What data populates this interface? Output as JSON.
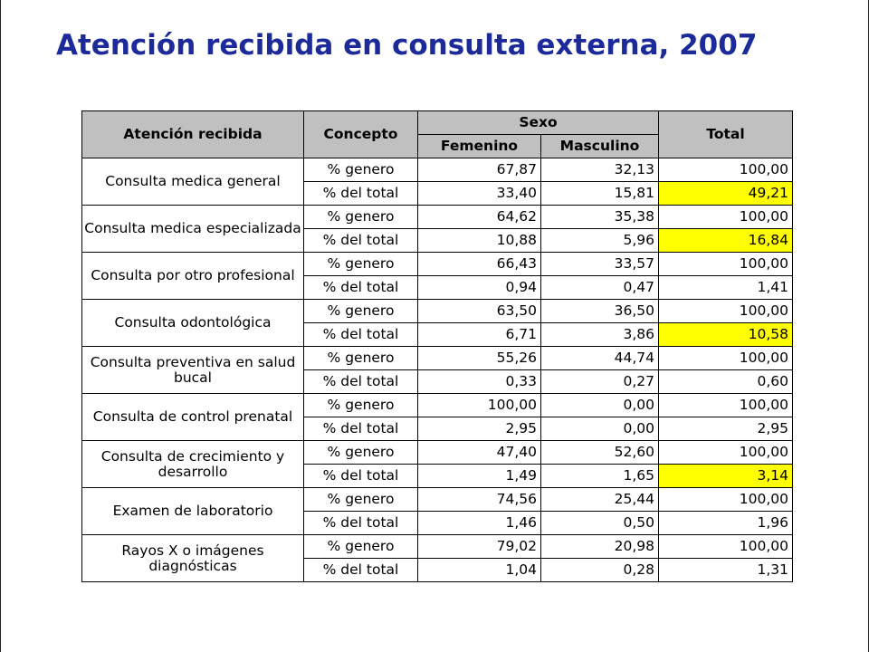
{
  "title": "Atención recibida en consulta externa, 2007",
  "highlight_color": "#ffff00",
  "header": {
    "col_atencion": "Atención recibida",
    "col_concepto": "Concepto",
    "col_sexo": "Sexo",
    "col_femenino": "Femenino",
    "col_masculino": "Masculino",
    "col_total": "Total"
  },
  "rows": [
    {
      "atencion": "Consulta medica general",
      "concepto": "% genero",
      "femenino": "67,87",
      "masculino": "32,13",
      "total": "100,00",
      "highlight": false
    },
    {
      "concepto": "% del total",
      "femenino": "33,40",
      "masculino": "15,81",
      "total": "49,21",
      "highlight": true
    },
    {
      "atencion": "Consulta medica especializada",
      "concepto": "% genero",
      "femenino": "64,62",
      "masculino": "35,38",
      "total": "100,00",
      "highlight": false
    },
    {
      "concepto": "% del total",
      "femenino": "10,88",
      "masculino": "5,96",
      "total": "16,84",
      "highlight": true
    },
    {
      "atencion": "Consulta por otro profesional",
      "concepto": "% genero",
      "femenino": "66,43",
      "masculino": "33,57",
      "total": "100,00",
      "highlight": false
    },
    {
      "concepto": "% del total",
      "femenino": "0,94",
      "masculino": "0,47",
      "total": "1,41",
      "highlight": false
    },
    {
      "atencion": "Consulta odontológica",
      "concepto": "% genero",
      "femenino": "63,50",
      "masculino": "36,50",
      "total": "100,00",
      "highlight": false
    },
    {
      "concepto": "% del total",
      "femenino": "6,71",
      "masculino": "3,86",
      "total": "10,58",
      "highlight": true
    },
    {
      "atencion": "Consulta preventiva en salud bucal",
      "concepto": "% genero",
      "femenino": "55,26",
      "masculino": "44,74",
      "total": "100,00",
      "highlight": false
    },
    {
      "concepto": "% del total",
      "femenino": "0,33",
      "masculino": "0,27",
      "total": "0,60",
      "highlight": false
    },
    {
      "atencion": "Consulta de control prenatal",
      "concepto": "% genero",
      "femenino": "100,00",
      "masculino": "0,00",
      "total": "100,00",
      "highlight": false
    },
    {
      "concepto": "% del total",
      "femenino": "2,95",
      "masculino": "0,00",
      "total": "2,95",
      "highlight": false
    },
    {
      "atencion": "Consulta de crecimiento y desarrollo",
      "concepto": "% genero",
      "femenino": "47,40",
      "masculino": "52,60",
      "total": "100,00",
      "highlight": false
    },
    {
      "concepto": "% del total",
      "femenino": "1,49",
      "masculino": "1,65",
      "total": "3,14",
      "highlight": true
    },
    {
      "atencion": "Examen de laboratorio",
      "concepto": "% genero",
      "femenino": "74,56",
      "masculino": "25,44",
      "total": "100,00",
      "highlight": false
    },
    {
      "concepto": "% del total",
      "femenino": "1,46",
      "masculino": "0,50",
      "total": "1,96",
      "highlight": false
    },
    {
      "atencion": "Rayos X o imágenes diagnósticas",
      "concepto": "% genero",
      "femenino": "79,02",
      "masculino": "20,98",
      "total": "100,00",
      "highlight": false
    },
    {
      "concepto": "% del total",
      "femenino": "1,04",
      "masculino": "0,28",
      "total": "1,31",
      "highlight": false
    }
  ]
}
